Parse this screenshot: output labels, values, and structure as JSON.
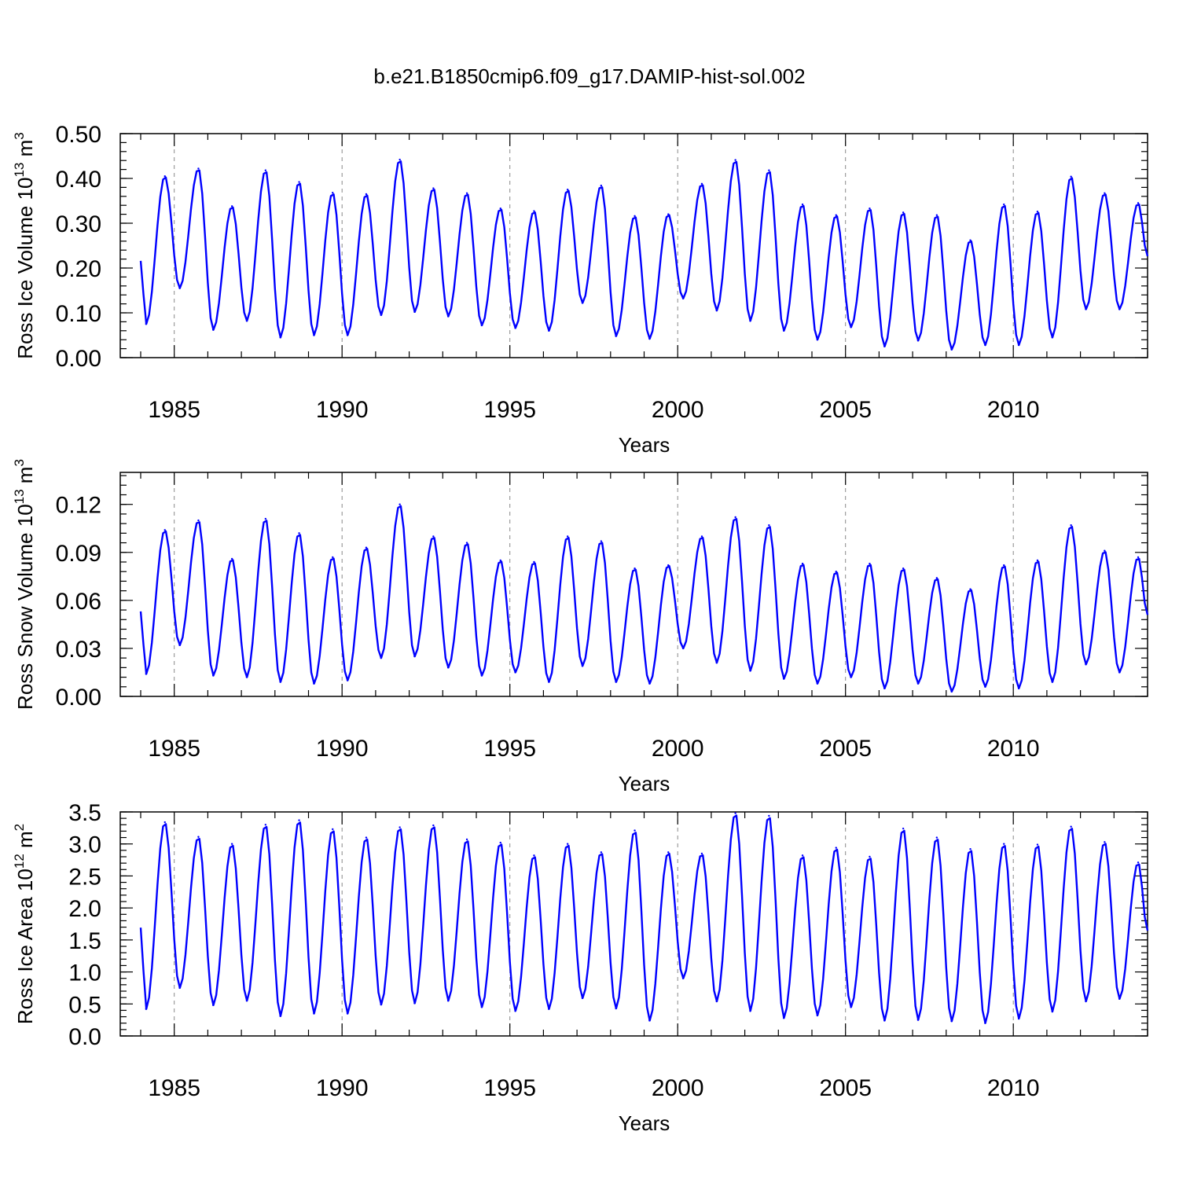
{
  "chart_data": {
    "title": "b.e21.B1850cmip6.f09_g17.DAMIP-hist-sol.002",
    "type": "line",
    "series_color": "#0000ff",
    "x_start_year": 1984,
    "x_end_year": 2014,
    "x_ticks": [
      1985,
      1990,
      1995,
      2000,
      2005,
      2010
    ],
    "x_tick_labels": [
      "1985",
      "1990",
      "1995",
      "2000",
      "2005",
      "2010"
    ],
    "panels": [
      {
        "id": "ice-volume",
        "ylabel": "Ross Ice Volume 10",
        "ylabel_exp": "13",
        "ylabel_unit": " m",
        "ylabel_unit_exp": "3",
        "xlabel": "Years",
        "ylim": [
          0.0,
          0.5
        ],
        "y_ticks": [
          0.0,
          0.1,
          0.2,
          0.3,
          0.4,
          0.5
        ],
        "y_tick_labels": [
          "0.00",
          "0.10",
          "0.20",
          "0.30",
          "0.40",
          "0.50"
        ],
        "y_minor_step": 0.02,
        "minima": [
          0.075,
          0.155,
          0.062,
          0.082,
          0.045,
          0.05,
          0.05,
          0.095,
          0.102,
          0.092,
          0.072,
          0.066,
          0.06,
          0.122,
          0.048,
          0.042,
          0.132,
          0.105,
          0.082,
          0.06,
          0.04,
          0.068,
          0.025,
          0.038,
          0.018,
          0.028,
          0.028,
          0.045,
          0.108,
          0.108
        ],
        "maxima": [
          0.405,
          0.422,
          0.338,
          0.418,
          0.392,
          0.368,
          0.365,
          0.442,
          0.378,
          0.367,
          0.333,
          0.327,
          0.375,
          0.384,
          0.316,
          0.32,
          0.388,
          0.441,
          0.418,
          0.342,
          0.318,
          0.333,
          0.324,
          0.318,
          0.262,
          0.342,
          0.326,
          0.404,
          0.367,
          0.345
        ]
      },
      {
        "id": "snow-volume",
        "ylabel": "Ross Snow Volume 10",
        "ylabel_exp": "13",
        "ylabel_unit": " m",
        "ylabel_unit_exp": "3",
        "xlabel": "Years",
        "ylim": [
          0.0,
          0.14
        ],
        "y_ticks": [
          0.0,
          0.03,
          0.06,
          0.09,
          0.12
        ],
        "y_tick_labels": [
          "0.00",
          "0.03",
          "0.06",
          "0.09",
          "0.12"
        ],
        "y_minor_step": 0.006,
        "minima": [
          0.014,
          0.032,
          0.013,
          0.012,
          0.009,
          0.008,
          0.01,
          0.024,
          0.025,
          0.018,
          0.013,
          0.015,
          0.009,
          0.019,
          0.009,
          0.008,
          0.03,
          0.021,
          0.016,
          0.011,
          0.008,
          0.012,
          0.005,
          0.008,
          0.003,
          0.006,
          0.005,
          0.009,
          0.02,
          0.015
        ],
        "maxima": [
          0.104,
          0.11,
          0.086,
          0.111,
          0.102,
          0.087,
          0.093,
          0.12,
          0.1,
          0.096,
          0.085,
          0.084,
          0.1,
          0.097,
          0.08,
          0.082,
          0.1,
          0.112,
          0.107,
          0.083,
          0.078,
          0.083,
          0.08,
          0.074,
          0.067,
          0.082,
          0.085,
          0.107,
          0.091,
          0.087
        ]
      },
      {
        "id": "ice-area",
        "ylabel": "Ross Ice Area 10",
        "ylabel_exp": "12",
        "ylabel_unit": " m",
        "ylabel_unit_exp": "2",
        "xlabel": "Years",
        "ylim": [
          0.0,
          3.5
        ],
        "y_ticks": [
          0.0,
          0.5,
          1.0,
          1.5,
          2.0,
          2.5,
          3.0,
          3.5
        ],
        "y_tick_labels": [
          "0.0",
          "0.5",
          "1.0",
          "1.5",
          "2.0",
          "2.5",
          "3.0",
          "3.5"
        ],
        "y_minor_step": 0.1,
        "minima": [
          0.42,
          0.75,
          0.48,
          0.55,
          0.31,
          0.35,
          0.35,
          0.49,
          0.51,
          0.55,
          0.45,
          0.39,
          0.42,
          0.59,
          0.43,
          0.24,
          0.9,
          0.54,
          0.39,
          0.28,
          0.32,
          0.45,
          0.24,
          0.25,
          0.23,
          0.2,
          0.27,
          0.38,
          0.54,
          0.58
        ],
        "maxima": [
          3.34,
          3.11,
          3.0,
          3.3,
          3.37,
          3.23,
          3.1,
          3.26,
          3.29,
          3.07,
          3.02,
          2.82,
          3.0,
          2.87,
          3.21,
          2.87,
          2.85,
          3.48,
          3.44,
          2.82,
          2.94,
          2.8,
          3.24,
          3.1,
          2.92,
          3.0,
          2.99,
          3.27,
          3.03,
          2.71
        ]
      }
    ]
  }
}
